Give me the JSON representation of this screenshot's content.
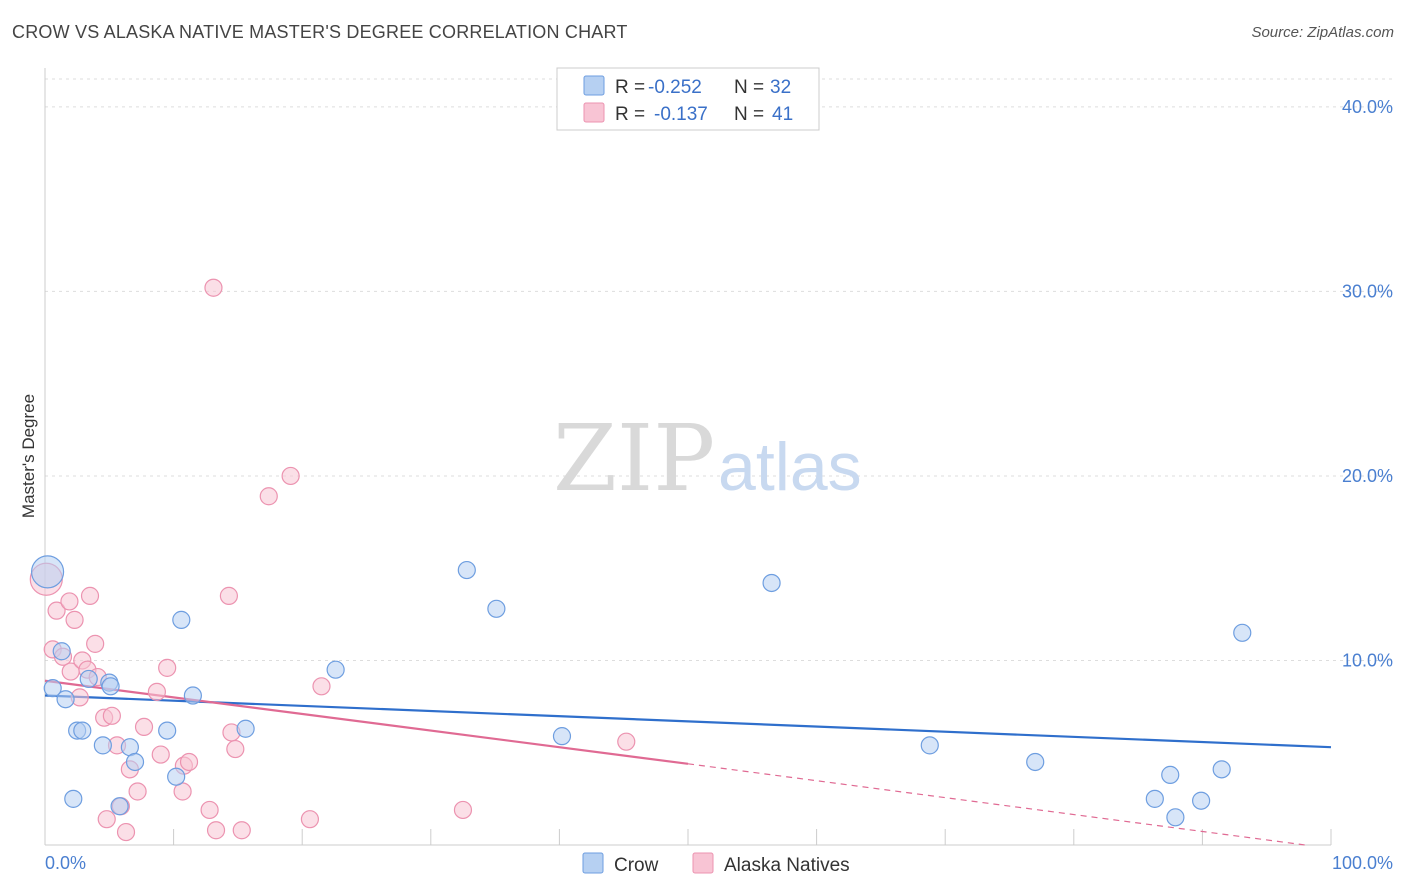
{
  "title": "CROW VS ALASKA NATIVE MASTER'S DEGREE CORRELATION CHART",
  "source": "Source: ZipAtlas.com",
  "watermark": {
    "zip": "ZIP",
    "atlas": "atlas"
  },
  "colors": {
    "crow_fill": "#b6d0f2",
    "crow_stroke": "#6e9ee0",
    "crow_line": "#2f6fcc",
    "alaska_fill": "#f8c4d4",
    "alaska_stroke": "#ec93b0",
    "alaska_line": "#e06a93",
    "grid": "#dddddd",
    "tick_label": "#4a7fd0"
  },
  "legend": {
    "rows": [
      {
        "r_label": "R =",
        "r_value": "-0.252",
        "n_label": "N =",
        "n_value": "32"
      },
      {
        "r_label": "R =",
        "r_value": "-0.137",
        "n_label": "N =",
        "n_value": "41"
      }
    ]
  },
  "bottom_legend": [
    "Crow",
    "Alaska Natives"
  ],
  "chart_data": {
    "type": "scatter",
    "title": "CROW VS ALASKA NATIVE MASTER'S DEGREE CORRELATION CHART",
    "xlabel": "",
    "ylabel": "Master's Degree",
    "xlim": [
      0,
      100
    ],
    "ylim": [
      0,
      42
    ],
    "x_tick_labels": [
      "0.0%",
      "100.0%"
    ],
    "y_ticks": [
      10,
      20,
      30,
      40
    ],
    "y_tick_labels": [
      "10.0%",
      "20.0%",
      "30.0%",
      "40.0%"
    ],
    "grid": true,
    "legend_position": "top-center",
    "series": [
      {
        "name": "Crow",
        "r": -0.252,
        "n": 32,
        "points": [
          {
            "x": 0.2,
            "y": 14.8,
            "big": true
          },
          {
            "x": 0.6,
            "y": 8.5
          },
          {
            "x": 1.3,
            "y": 10.5
          },
          {
            "x": 1.6,
            "y": 7.9
          },
          {
            "x": 2.2,
            "y": 2.5
          },
          {
            "x": 2.5,
            "y": 6.2
          },
          {
            "x": 2.9,
            "y": 6.2
          },
          {
            "x": 3.4,
            "y": 9.0
          },
          {
            "x": 4.5,
            "y": 5.4
          },
          {
            "x": 5.0,
            "y": 8.8
          },
          {
            "x": 5.1,
            "y": 8.6
          },
          {
            "x": 5.8,
            "y": 2.1
          },
          {
            "x": 6.6,
            "y": 5.3
          },
          {
            "x": 7.0,
            "y": 4.5
          },
          {
            "x": 9.5,
            "y": 6.2
          },
          {
            "x": 10.2,
            "y": 3.7
          },
          {
            "x": 10.6,
            "y": 12.2
          },
          {
            "x": 11.5,
            "y": 8.1
          },
          {
            "x": 15.6,
            "y": 6.3
          },
          {
            "x": 22.6,
            "y": 9.5
          },
          {
            "x": 32.8,
            "y": 14.9
          },
          {
            "x": 35.1,
            "y": 12.8
          },
          {
            "x": 40.2,
            "y": 5.9
          },
          {
            "x": 56.5,
            "y": 14.2
          },
          {
            "x": 68.8,
            "y": 5.4
          },
          {
            "x": 77.0,
            "y": 4.5
          },
          {
            "x": 86.3,
            "y": 2.5
          },
          {
            "x": 87.5,
            "y": 3.8
          },
          {
            "x": 87.9,
            "y": 1.5
          },
          {
            "x": 89.9,
            "y": 2.4
          },
          {
            "x": 91.5,
            "y": 4.1
          },
          {
            "x": 93.1,
            "y": 11.5
          }
        ],
        "trend": {
          "x": [
            0,
            100
          ],
          "y": [
            8.1,
            5.3
          ]
        }
      },
      {
        "name": "Alaska Natives",
        "r": -0.137,
        "n": 41,
        "points": [
          {
            "x": 0.1,
            "y": 14.4,
            "big": true
          },
          {
            "x": 0.6,
            "y": 10.6
          },
          {
            "x": 0.9,
            "y": 12.7
          },
          {
            "x": 1.4,
            "y": 10.2
          },
          {
            "x": 1.9,
            "y": 13.2
          },
          {
            "x": 2.0,
            "y": 9.4
          },
          {
            "x": 2.3,
            "y": 12.2
          },
          {
            "x": 2.7,
            "y": 8.0
          },
          {
            "x": 2.9,
            "y": 10.0
          },
          {
            "x": 3.3,
            "y": 9.5
          },
          {
            "x": 3.5,
            "y": 13.5
          },
          {
            "x": 3.9,
            "y": 10.9
          },
          {
            "x": 4.1,
            "y": 9.1
          },
          {
            "x": 4.6,
            "y": 6.9
          },
          {
            "x": 4.8,
            "y": 1.4
          },
          {
            "x": 5.2,
            "y": 7.0
          },
          {
            "x": 5.6,
            "y": 5.4
          },
          {
            "x": 5.9,
            "y": 2.1
          },
          {
            "x": 6.3,
            "y": 0.7
          },
          {
            "x": 6.6,
            "y": 4.1
          },
          {
            "x": 7.2,
            "y": 2.9
          },
          {
            "x": 7.7,
            "y": 6.4
          },
          {
            "x": 8.7,
            "y": 8.3
          },
          {
            "x": 9.0,
            "y": 4.9
          },
          {
            "x": 9.5,
            "y": 9.6
          },
          {
            "x": 10.7,
            "y": 2.9
          },
          {
            "x": 10.8,
            "y": 4.3
          },
          {
            "x": 11.2,
            "y": 4.5
          },
          {
            "x": 12.8,
            "y": 1.9
          },
          {
            "x": 13.1,
            "y": 30.2
          },
          {
            "x": 13.3,
            "y": 0.8
          },
          {
            "x": 14.3,
            "y": 13.5
          },
          {
            "x": 14.5,
            "y": 6.1
          },
          {
            "x": 14.8,
            "y": 5.2
          },
          {
            "x": 15.3,
            "y": 0.8
          },
          {
            "x": 17.4,
            "y": 18.9
          },
          {
            "x": 19.1,
            "y": 20.0
          },
          {
            "x": 20.6,
            "y": 1.4
          },
          {
            "x": 21.5,
            "y": 8.6
          },
          {
            "x": 32.5,
            "y": 1.9
          },
          {
            "x": 45.2,
            "y": 5.6
          }
        ],
        "trend": {
          "x": [
            0,
            50
          ],
          "y": [
            8.9,
            4.4
          ]
        },
        "trend_dashed": {
          "x": [
            50,
            98
          ],
          "y": [
            4.4,
            0.0
          ]
        }
      }
    ]
  }
}
